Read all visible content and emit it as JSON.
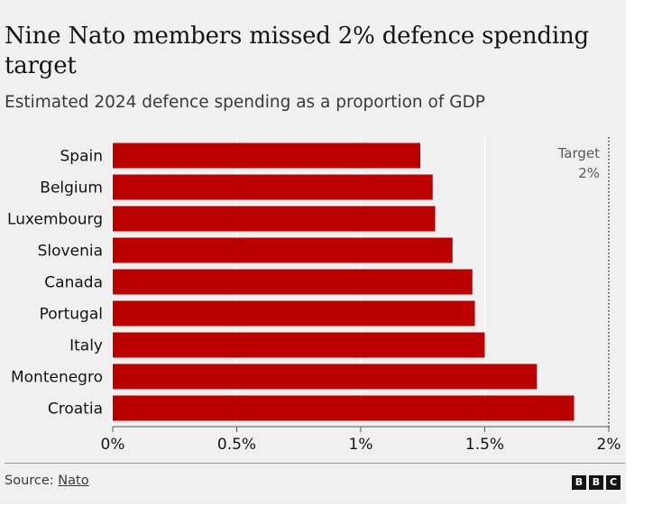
{
  "header": {
    "title": "Nine Nato members missed 2% defence spending target",
    "subtitle": "Estimated 2024 defence spending as a proportion of GDP"
  },
  "footer": {
    "source_label": "Source:",
    "source_link": "Nato",
    "logo_letters": [
      "B",
      "B",
      "C"
    ]
  },
  "colors": {
    "bar": "#bb0000",
    "background": "#f0f0f0",
    "text": "#141414"
  },
  "chart_data": {
    "type": "bar",
    "orientation": "horizontal",
    "categories": [
      "Spain",
      "Belgium",
      "Luxembourg",
      "Slovenia",
      "Canada",
      "Portugal",
      "Italy",
      "Montenegro",
      "Croatia"
    ],
    "values": [
      1.24,
      1.29,
      1.3,
      1.37,
      1.45,
      1.46,
      1.5,
      1.71,
      1.86
    ],
    "xlim": [
      0,
      2
    ],
    "xticks": [
      0,
      0.5,
      1,
      1.5,
      2
    ],
    "xtick_labels": [
      "0%",
      "0.5%",
      "1%",
      "1.5%",
      "2%"
    ],
    "grid": true,
    "target": {
      "value": 2,
      "label_line1": "Target",
      "label_line2": "2%"
    }
  }
}
